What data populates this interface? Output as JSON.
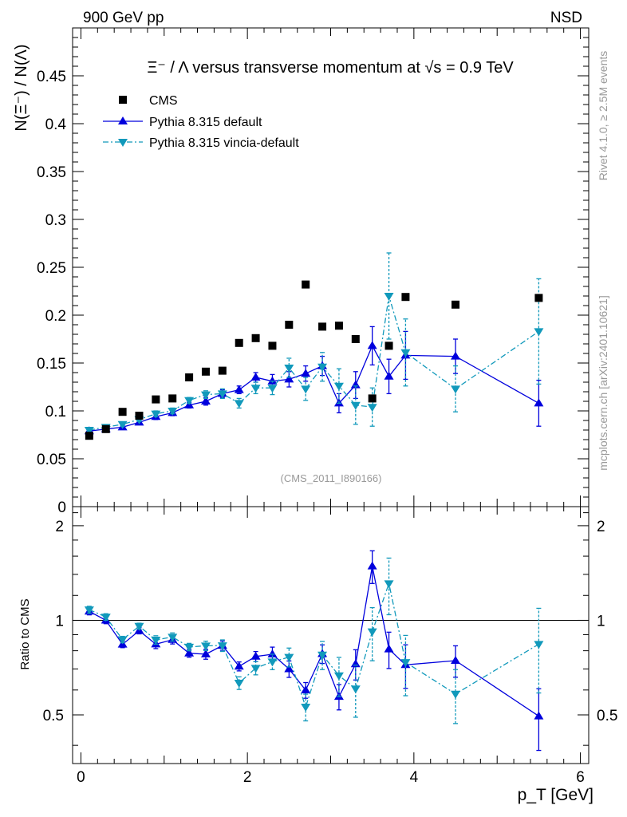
{
  "header": {
    "left": "900 GeV pp",
    "right": "NSD",
    "rivet": "Rivet 4.1.0, ≥ 2.5M events",
    "mcplots": "mcplots.cern.ch [arXiv:2401.10621]",
    "analysis_id": "(CMS_2011_I890166)"
  },
  "chart_data": {
    "type": "scatter",
    "title": "Ξ⁻ / Λ versus transverse momentum at √s = 0.9 TeV",
    "xlabel": "p_T [GeV]",
    "ylabel": "N(Ξ⁻) / N(Λ)",
    "ratio_ylabel": "Ratio to CMS",
    "xlim": [
      -0.1,
      6.1
    ],
    "ylim": [
      0,
      0.5
    ],
    "ratio_ylim": [
      0.35,
      2.3
    ],
    "x_ticks": [
      "0",
      "2",
      "4",
      "6"
    ],
    "y_ticks": [
      "0",
      "0.05",
      "0.1",
      "0.15",
      "0.2",
      "0.25",
      "0.3",
      "0.35",
      "0.4",
      "0.45"
    ],
    "ratio_ticks": [
      "0.5",
      "1",
      "2"
    ],
    "legend": [
      "CMS",
      "Pythia 8.315 default",
      "Pythia 8.315 vincia-default"
    ],
    "series": [
      {
        "name": "CMS",
        "color": "#000000",
        "marker": "square",
        "points": [
          [
            0.1,
            0.074
          ],
          [
            0.3,
            0.081
          ],
          [
            0.5,
            0.099
          ],
          [
            0.7,
            0.095
          ],
          [
            0.9,
            0.112
          ],
          [
            1.1,
            0.113
          ],
          [
            1.3,
            0.135
          ],
          [
            1.5,
            0.141
          ],
          [
            1.7,
            0.142
          ],
          [
            1.9,
            0.171
          ],
          [
            2.1,
            0.176
          ],
          [
            2.3,
            0.168
          ],
          [
            2.5,
            0.19
          ],
          [
            2.7,
            0.232
          ],
          [
            2.9,
            0.188
          ],
          [
            3.1,
            0.189
          ],
          [
            3.3,
            0.175
          ],
          [
            3.5,
            0.113
          ],
          [
            3.7,
            0.168
          ],
          [
            3.9,
            0.219
          ],
          [
            4.5,
            0.211
          ],
          [
            5.5,
            0.218
          ]
        ]
      },
      {
        "name": "Pythia 8.315 default",
        "color": "#0000dd",
        "marker": "triangle-up",
        "points": [
          [
            0.1,
            0.079,
            0.002
          ],
          [
            0.3,
            0.081,
            0.002
          ],
          [
            0.5,
            0.083,
            0.002
          ],
          [
            0.7,
            0.088,
            0.002
          ],
          [
            0.9,
            0.094,
            0.003
          ],
          [
            1.1,
            0.098,
            0.003
          ],
          [
            1.3,
            0.106,
            0.003
          ],
          [
            1.5,
            0.11,
            0.004
          ],
          [
            1.7,
            0.118,
            0.004
          ],
          [
            1.9,
            0.122,
            0.004
          ],
          [
            2.1,
            0.135,
            0.005
          ],
          [
            2.3,
            0.131,
            0.007
          ],
          [
            2.5,
            0.133,
            0.008
          ],
          [
            2.7,
            0.139,
            0.008
          ],
          [
            2.9,
            0.147,
            0.01
          ],
          [
            3.1,
            0.108,
            0.01
          ],
          [
            3.3,
            0.127,
            0.014
          ],
          [
            3.5,
            0.168,
            0.02
          ],
          [
            3.7,
            0.136,
            0.018
          ],
          [
            3.9,
            0.158,
            0.025
          ],
          [
            4.5,
            0.157,
            0.018
          ],
          [
            5.5,
            0.108,
            0.024
          ]
        ]
      },
      {
        "name": "Pythia 8.315 vincia-default",
        "color": "#1199bb",
        "marker": "triangle-down",
        "points": [
          [
            0.1,
            0.08,
            0.002
          ],
          [
            0.3,
            0.083,
            0.002
          ],
          [
            0.5,
            0.086,
            0.002
          ],
          [
            0.7,
            0.091,
            0.002
          ],
          [
            0.9,
            0.097,
            0.003
          ],
          [
            1.1,
            0.1,
            0.003
          ],
          [
            1.3,
            0.111,
            0.003
          ],
          [
            1.5,
            0.117,
            0.004
          ],
          [
            1.7,
            0.118,
            0.005
          ],
          [
            1.9,
            0.108,
            0.005
          ],
          [
            2.1,
            0.124,
            0.006
          ],
          [
            2.3,
            0.124,
            0.007
          ],
          [
            2.5,
            0.145,
            0.01
          ],
          [
            2.7,
            0.123,
            0.012
          ],
          [
            2.9,
            0.146,
            0.015
          ],
          [
            3.1,
            0.126,
            0.018
          ],
          [
            3.3,
            0.106,
            0.02
          ],
          [
            3.5,
            0.104,
            0.02
          ],
          [
            3.7,
            0.22,
            0.045
          ],
          [
            3.9,
            0.161,
            0.035
          ],
          [
            4.5,
            0.123,
            0.024
          ],
          [
            5.5,
            0.183,
            0.055
          ]
        ]
      }
    ]
  }
}
